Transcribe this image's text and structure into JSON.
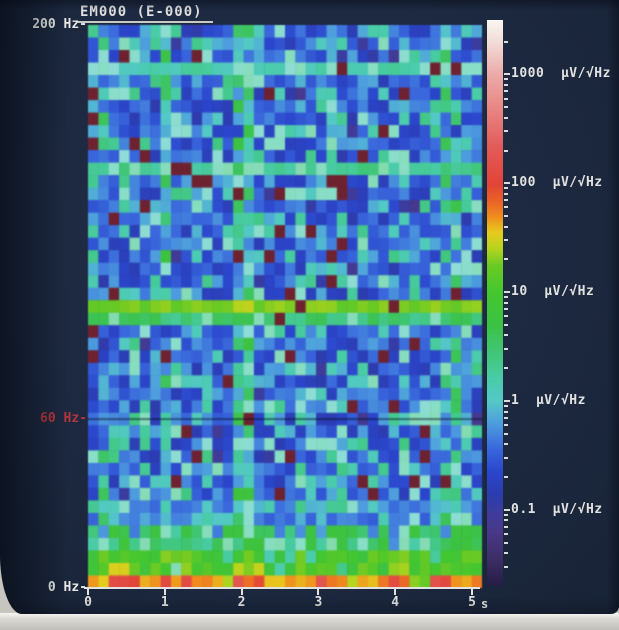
{
  "window": {
    "screen_bg": "#1d2940",
    "bezel_color": "#dedcd6"
  },
  "header": {
    "title": "EM000 (E-000)"
  },
  "y_axis": {
    "unit": "Hz",
    "labels": [
      {
        "text": "200 Hz-",
        "freq": 200,
        "color": "#e6e6e4"
      },
      {
        "text": "60 Hz-",
        "freq": 60,
        "color": "#b8343c"
      },
      {
        "text": "0 Hz-",
        "freq": 0,
        "color": "#e6e6e4"
      }
    ]
  },
  "x_axis": {
    "ticks": [
      "0",
      "1",
      "2",
      "3",
      "4",
      "5"
    ],
    "unit": "s"
  },
  "colorbar": {
    "unit": "µV/√Hz",
    "labels": [
      {
        "text": "1000  µV/√Hz",
        "log": 3
      },
      {
        "text": "100  µV/√Hz",
        "log": 2
      },
      {
        "text": "10  µV/√Hz",
        "log": 1
      },
      {
        "text": "1  µV/√Hz",
        "log": 0
      },
      {
        "text": "0.1  µV/√Hz",
        "log": -1
      }
    ]
  },
  "chart_data": {
    "type": "heatmap",
    "title": "EM000 (E-000)",
    "xlabel": "s",
    "ylabel": "Hz",
    "x_range": [
      0,
      5.13
    ],
    "y_range": [
      0,
      200
    ],
    "z_unit": "µV/√Hz",
    "z_scale": "log10",
    "z_range_log": [
      -1.7,
      3.5
    ],
    "grid": {
      "cols": 38,
      "rows": 45
    },
    "seed": 1337,
    "speck_prob": 0.032,
    "speck_color": "#6e2230",
    "colormap": [
      {
        "log": -1.7,
        "color": "#241c44"
      },
      {
        "log": -1.45,
        "color": "#3c2e66"
      },
      {
        "log": -1.2,
        "color": "#4a3888"
      },
      {
        "log": -1.0,
        "color": "#3c3c9e"
      },
      {
        "log": -0.85,
        "color": "#2c3cb0"
      },
      {
        "log": -0.65,
        "color": "#2b46cc"
      },
      {
        "log": -0.43,
        "color": "#3a68dc"
      },
      {
        "log": -0.2,
        "color": "#4e9ede"
      },
      {
        "log": 0.0,
        "color": "#55c8c8"
      },
      {
        "log": 0.2,
        "color": "#4accaa"
      },
      {
        "log": 0.45,
        "color": "#40c678"
      },
      {
        "log": 0.7,
        "color": "#3cc244"
      },
      {
        "log": 1.0,
        "color": "#44c630"
      },
      {
        "log": 1.25,
        "color": "#6cca24"
      },
      {
        "log": 1.4,
        "color": "#b4d41e"
      },
      {
        "log": 1.55,
        "color": "#e6cc1e"
      },
      {
        "log": 1.7,
        "color": "#f08c1e"
      },
      {
        "log": 1.85,
        "color": "#ea6028"
      },
      {
        "log": 2.0,
        "color": "#e24438"
      },
      {
        "log": 2.35,
        "color": "#e25c5c"
      },
      {
        "log": 2.7,
        "color": "#e88884"
      },
      {
        "log": 3.0,
        "color": "#ecaaa8"
      },
      {
        "log": 3.3,
        "color": "#f2dcd8"
      },
      {
        "log": 3.5,
        "color": "#f8f6f0"
      }
    ],
    "freq_zones": [
      {
        "min": 30,
        "max": 200,
        "base": -0.45,
        "spread": 0.75,
        "cyan_prob": 0.24,
        "dark_prob": 0.05
      },
      {
        "min": 22,
        "max": 30,
        "base": -0.05,
        "spread": 0.8,
        "drop_prob": 0.25,
        "drop_level": -0.4
      },
      {
        "min": 12,
        "max": 22,
        "base": 0.55,
        "spread": 0.7,
        "drop_prob": 0.15,
        "drop_level": -0.25
      },
      {
        "min": 5,
        "max": 12,
        "base": 1.0,
        "spread": 0.55,
        "drop_prob": 0.1,
        "drop_level": 0.2
      },
      {
        "min": -1,
        "max": 5,
        "base": 1.5,
        "spread": 0.6
      }
    ],
    "bands": [
      {
        "freq": 185,
        "halfwidth": 2.2,
        "level": 0.02,
        "noise": 0.3,
        "desc": "pale cyan band ~185 Hz"
      },
      {
        "freq": 150,
        "halfwidth": 2.5,
        "level": 0.18,
        "noise": 0.3,
        "desc": "pale cyan band ~150 Hz"
      },
      {
        "freq": 100,
        "halfwidth": 3.0,
        "level": 1.15,
        "noise": 0.2,
        "desc": "bright yellow-green band ~100 Hz (~10 µV/√Hz)"
      },
      {
        "freq": 94,
        "halfwidth": 2.2,
        "level": 0.3,
        "noise": 0.35,
        "desc": "cyan-green band just below 100 Hz"
      }
    ],
    "mains_notch": {
      "freq": 60,
      "desc": "thin dark line at 60 Hz"
    },
    "stripes": [
      {
        "t": 0.22,
        "width": 0.1,
        "boost": 0.22
      },
      {
        "t": 1.0,
        "width": 0.1,
        "boost": 0.38
      },
      {
        "t": 2.03,
        "width": 0.17,
        "boost": 0.45
      },
      {
        "t": 4.72,
        "width": 0.12,
        "boost": 0.28
      }
    ],
    "low_freq_blobs": [
      {
        "t": 0.5,
        "width": 0.2,
        "boost": 0.55
      },
      {
        "t": 1.15,
        "width": 0.18,
        "boost": 0.5
      },
      {
        "t": 2.05,
        "width": 0.2,
        "boost": 0.6
      },
      {
        "t": 3.2,
        "width": 0.18,
        "boost": 0.55
      },
      {
        "t": 4.05,
        "width": 0.18,
        "boost": 0.5
      },
      {
        "t": 4.65,
        "width": 0.18,
        "boost": 0.55
      },
      {
        "t": 5.0,
        "width": 0.15,
        "boost": 0.5
      }
    ]
  }
}
